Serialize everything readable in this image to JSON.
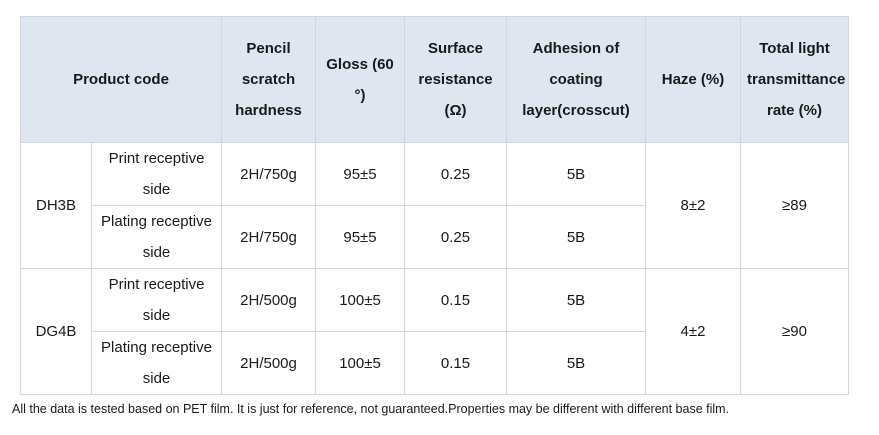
{
  "headers": {
    "product_code": "Product code",
    "pencil": "Pencil scratch hardness",
    "gloss": "Gloss (60 °)",
    "surface": "Surface resistance (Ω)",
    "adhesion": "Adhesion of coating layer(crosscut)",
    "haze": "Haze (%)",
    "transmittance": "Total light transmittance rate (%)"
  },
  "products": [
    {
      "code": "DH3B",
      "haze": "8±2",
      "transmittance": "≥89",
      "rows": [
        {
          "side": "Print receptive side",
          "pencil": "2H/750g",
          "gloss": "95±5",
          "surface": "0.25",
          "adhesion": "5B"
        },
        {
          "side": "Plating receptive side",
          "pencil": "2H/750g",
          "gloss": "95±5",
          "surface": "0.25",
          "adhesion": "5B"
        }
      ]
    },
    {
      "code": "DG4B",
      "haze": "4±2",
      "transmittance": "≥90",
      "rows": [
        {
          "side": "Print receptive side",
          "pencil": "2H/500g",
          "gloss": "100±5",
          "surface": "0.15",
          "adhesion": "5B"
        },
        {
          "side": "Plating receptive side",
          "pencil": "2H/500g",
          "gloss": "100±5",
          "surface": "0.15",
          "adhesion": "5B"
        }
      ]
    }
  ],
  "footnote": "All the data is tested based on PET film. It is just for reference, not guaranteed.Properties may be different with different base film."
}
